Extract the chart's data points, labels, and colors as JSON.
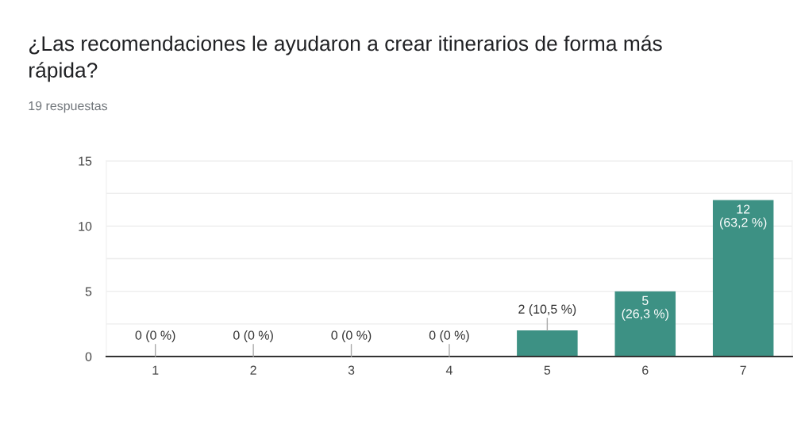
{
  "chart_data": {
    "type": "bar",
    "title": "¿Las recomendaciones le ayudaron a crear itinerarios de forma más\nrápida?",
    "subtitle": "19 respuestas",
    "categories": [
      "1",
      "2",
      "3",
      "4",
      "5",
      "6",
      "7"
    ],
    "values": [
      0,
      0,
      0,
      0,
      2,
      5,
      12
    ],
    "color": "#3d9184",
    "value_labels": [
      "0 (0 %)",
      "0 (0 %)",
      "0 (0 %)",
      "0 (0 %)",
      "2 (10,5 %)",
      "5\n(26,3 %)",
      "12\n(63,2 %)"
    ],
    "ylim": [
      0,
      15
    ],
    "yticks": [
      0,
      {
        "value": 2.5,
        "label": null
      },
      5,
      {
        "value": 7.5,
        "label": null
      },
      10,
      {
        "value": 12.5,
        "label": null
      },
      15
    ],
    "grid": "y"
  }
}
